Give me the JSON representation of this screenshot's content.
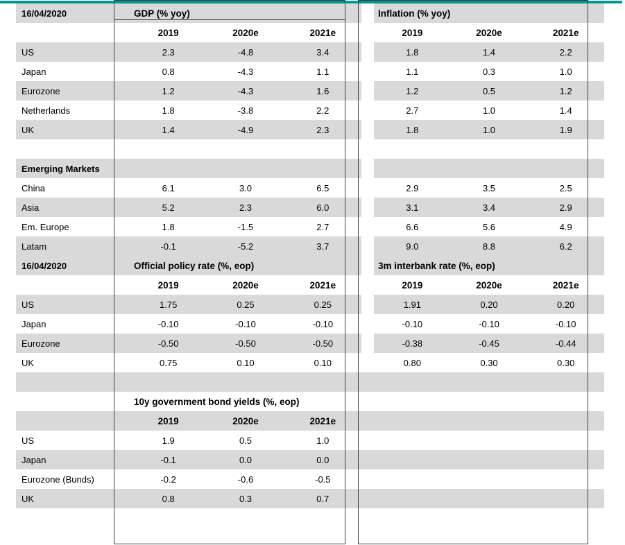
{
  "colors": {
    "accent_teal": "#009790",
    "row_stripe": "#d9d9d9"
  },
  "blocks": [
    {
      "name": "growth-inflation",
      "corner_label": "16/04/2020",
      "tables": [
        {
          "title": "GDP (% yoy)",
          "years": [
            "2019",
            "2020e",
            "2021e"
          ]
        },
        {
          "title": "Inflation (% yoy)",
          "years": [
            "2019",
            "2020e",
            "2021e"
          ]
        }
      ],
      "rows": [
        {
          "label": "US",
          "cells": [
            [
              "2.3",
              "-4.8",
              "3.4"
            ],
            [
              "1.8",
              "1.4",
              "2.2"
            ]
          ]
        },
        {
          "label": "Japan",
          "cells": [
            [
              "0.8",
              "-4.3",
              "1.1"
            ],
            [
              "1.1",
              "0.3",
              "1.0"
            ]
          ]
        },
        {
          "label": "Eurozone",
          "cells": [
            [
              "1.2",
              "-4.3",
              "1.6"
            ],
            [
              "1.2",
              "0.5",
              "1.2"
            ]
          ]
        },
        {
          "label": "Netherlands",
          "cells": [
            [
              "1.8",
              "-3.8",
              "2.2"
            ],
            [
              "2.7",
              "1.0",
              "1.4"
            ]
          ]
        },
        {
          "label": "UK",
          "cells": [
            [
              "1.4",
              "-4.9",
              "2.3"
            ],
            [
              "1.8",
              "1.0",
              "1.9"
            ]
          ]
        },
        {
          "label": "",
          "spacer": true
        },
        {
          "label": "Emerging Markets",
          "bold": true
        },
        {
          "label": "China",
          "cells": [
            [
              "6.1",
              "3.0",
              "6.5"
            ],
            [
              "2.9",
              "3.5",
              "2.5"
            ]
          ]
        },
        {
          "label": "Asia",
          "cells": [
            [
              "5.2",
              "2.3",
              "6.0"
            ],
            [
              "3.1",
              "3.4",
              "2.9"
            ]
          ]
        },
        {
          "label": "Em. Europe",
          "cells": [
            [
              "1.8",
              "-1.5",
              "2.7"
            ],
            [
              "6.6",
              "5.6",
              "4.9"
            ]
          ]
        },
        {
          "label": "Latam",
          "cells": [
            [
              "-0.1",
              "-5.2",
              "3.7"
            ],
            [
              "9.0",
              "8.8",
              "6.2"
            ]
          ]
        }
      ]
    },
    {
      "name": "policy-rates",
      "corner_label": "16/04/2020",
      "tables": [
        {
          "title": "Official policy rate (%, eop)",
          "years": [
            "2019",
            "2020e",
            "2021e"
          ]
        },
        {
          "title": "3m interbank rate (%, eop)",
          "years": [
            "2019",
            "2020e",
            "2021e"
          ]
        }
      ],
      "rows": [
        {
          "label": "US",
          "cells": [
            [
              "1.75",
              "0.25",
              "0.25"
            ],
            [
              "1.91",
              "0.20",
              "0.20"
            ]
          ]
        },
        {
          "label": "Japan",
          "cells": [
            [
              "-0.10",
              "-0.10",
              "-0.10"
            ],
            [
              "-0.10",
              "-0.10",
              "-0.10"
            ]
          ]
        },
        {
          "label": "Eurozone",
          "cells": [
            [
              "-0.50",
              "-0.50",
              "-0.50"
            ],
            [
              "-0.38",
              "-0.45",
              "-0.44"
            ]
          ]
        },
        {
          "label": "UK",
          "cells": [
            [
              "0.75",
              "0.10",
              "0.10"
            ],
            [
              "0.80",
              "0.30",
              "0.30"
            ]
          ]
        }
      ]
    },
    {
      "name": "bond-yields",
      "corner_label": "",
      "tables": [
        {
          "title": "10y government bond yields (%, eop)",
          "years": [
            "2019",
            "2020e",
            "2021e"
          ]
        }
      ],
      "rows": [
        {
          "label": "US",
          "cells": [
            [
              "1.9",
              "0.5",
              "1.0"
            ]
          ]
        },
        {
          "label": "Japan",
          "cells": [
            [
              "-0.1",
              "0.0",
              "0.0"
            ]
          ]
        },
        {
          "label": "Eurozone (Bunds)",
          "cells": [
            [
              "-0.2",
              "-0.6",
              "-0.5"
            ]
          ]
        },
        {
          "label": "UK",
          "cells": [
            [
              "0.8",
              "0.3",
              "0.7"
            ]
          ]
        }
      ]
    }
  ]
}
